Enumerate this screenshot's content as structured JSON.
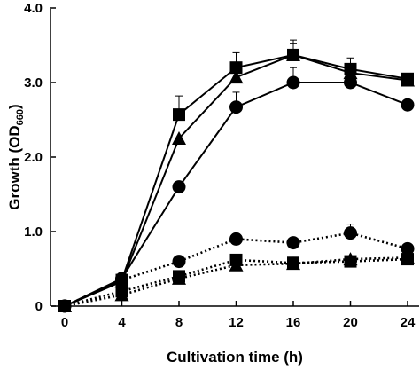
{
  "chart_data": {
    "type": "line",
    "title": "",
    "xlabel": "Cultivation time (h)",
    "ylabel": {
      "main": "Growth (OD",
      "sub": "660",
      "close": ")"
    },
    "xlim": [
      0,
      24
    ],
    "ylim": [
      0,
      4.0
    ],
    "xticks": [
      0,
      4,
      8,
      12,
      16,
      20,
      24
    ],
    "xtick_labels": [
      "0",
      "4",
      "8",
      "12",
      "16",
      "20",
      "24"
    ],
    "yticks": [
      0,
      1.0,
      2.0,
      3.0,
      4.0
    ],
    "ytick_labels": [
      "0",
      "1.0",
      "2.0",
      "3.0",
      "4.0"
    ],
    "grid": false,
    "legend": "none",
    "x": [
      0,
      4,
      8,
      12,
      16,
      20,
      24
    ],
    "series": [
      {
        "marker": "square",
        "line": "solid",
        "values": [
          0,
          0.35,
          2.57,
          3.2,
          3.37,
          3.18,
          3.05
        ],
        "errors": [
          0,
          0,
          0.25,
          0.2,
          0.2,
          0.15,
          0.05
        ]
      },
      {
        "marker": "triangle",
        "line": "solid",
        "values": [
          0,
          0.33,
          2.25,
          3.07,
          3.37,
          3.13,
          3.03
        ],
        "errors": [
          0,
          0,
          0,
          0.15,
          0.15,
          0.1,
          0.05
        ]
      },
      {
        "marker": "circle",
        "line": "solid",
        "values": [
          0,
          0.37,
          1.6,
          2.67,
          3.0,
          3.0,
          2.7
        ],
        "errors": [
          0,
          0,
          0,
          0.2,
          0.2,
          0.2,
          0.05
        ]
      },
      {
        "marker": "circle",
        "line": "dotted",
        "values": [
          0,
          0.35,
          0.6,
          0.9,
          0.85,
          0.98,
          0.77
        ],
        "errors": [
          0,
          0,
          0,
          0,
          0,
          0.12,
          0
        ]
      },
      {
        "marker": "square",
        "line": "dotted",
        "values": [
          0,
          0.2,
          0.4,
          0.62,
          0.58,
          0.6,
          0.63
        ],
        "errors": [
          0,
          0,
          0,
          0,
          0,
          0,
          0
        ]
      },
      {
        "marker": "triangle",
        "line": "dotted",
        "values": [
          0,
          0.15,
          0.37,
          0.55,
          0.57,
          0.63,
          0.65
        ],
        "errors": [
          0,
          0,
          0,
          0,
          0,
          0,
          0
        ]
      }
    ]
  }
}
